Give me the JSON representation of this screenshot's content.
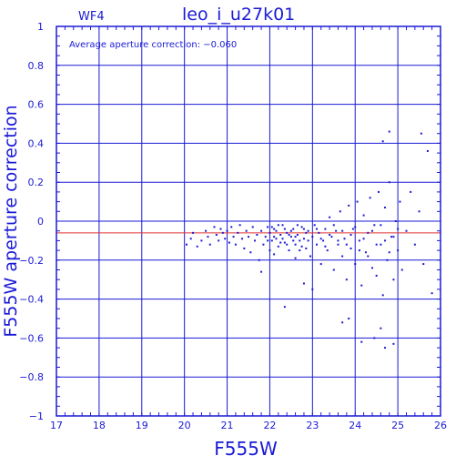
{
  "chart_data": {
    "type": "scatter",
    "panel_label": "WF4",
    "title": "leo_i_u27k01",
    "annotation": "Average aperture correction: −0.060",
    "xlabel": "F555W",
    "ylabel": "F555W aperture correction",
    "xlim": [
      17,
      26
    ],
    "ylim": [
      -1,
      1
    ],
    "x_ticks": [
      "17",
      "18",
      "19",
      "20",
      "21",
      "22",
      "23",
      "24",
      "25",
      "26"
    ],
    "y_ticks": [
      "1",
      "0.8",
      "0.6",
      "0.4",
      "0.2",
      "0",
      "−0.2",
      "−0.4",
      "−0.6",
      "−0.8",
      "−1"
    ],
    "grid": true,
    "zero_line": 0,
    "mean_line": -0.06,
    "colors": {
      "axes": "#1a1ad6",
      "points": "#1a1ad6",
      "mean_line": "#e03030"
    },
    "series": [
      {
        "values": [
          [
            20.05,
            -0.12
          ],
          [
            20.15,
            -0.09
          ],
          [
            20.2,
            -0.06
          ],
          [
            20.3,
            -0.13
          ],
          [
            20.4,
            -0.1
          ],
          [
            20.5,
            -0.05
          ],
          [
            20.55,
            -0.08
          ],
          [
            20.6,
            -0.12
          ],
          [
            20.7,
            -0.03
          ],
          [
            20.75,
            -0.07
          ],
          [
            20.8,
            -0.1
          ],
          [
            20.85,
            -0.04
          ],
          [
            20.9,
            -0.06
          ],
          [
            20.95,
            -0.09
          ],
          [
            21.0,
            -0.05
          ],
          [
            21.05,
            -0.11
          ],
          [
            21.1,
            -0.03
          ],
          [
            21.15,
            -0.08
          ],
          [
            21.2,
            -0.12
          ],
          [
            21.25,
            -0.06
          ],
          [
            21.3,
            -0.02
          ],
          [
            21.35,
            -0.09
          ],
          [
            21.4,
            -0.14
          ],
          [
            21.45,
            -0.05
          ],
          [
            21.5,
            -0.08
          ],
          [
            21.55,
            -0.16
          ],
          [
            21.6,
            -0.03
          ],
          [
            21.65,
            -0.1
          ],
          [
            21.7,
            -0.07
          ],
          [
            21.75,
            -0.2
          ],
          [
            21.8,
            -0.05
          ],
          [
            21.85,
            -0.12
          ],
          [
            21.9,
            -0.08
          ],
          [
            21.95,
            -0.03
          ],
          [
            22.0,
            -0.06
          ],
          [
            22.05,
            -0.1
          ],
          [
            22.1,
            -0.04
          ],
          [
            22.15,
            -0.09
          ],
          [
            22.2,
            -0.13
          ],
          [
            22.25,
            -0.07
          ],
          [
            22.3,
            -0.02
          ],
          [
            22.35,
            -0.11
          ],
          [
            22.4,
            -0.06
          ],
          [
            22.45,
            -0.15
          ],
          [
            22.5,
            -0.08
          ],
          [
            22.55,
            -0.04
          ],
          [
            22.6,
            -0.12
          ],
          [
            22.65,
            -0.07
          ],
          [
            22.7,
            -0.1
          ],
          [
            22.75,
            -0.03
          ],
          [
            22.8,
            -0.09
          ],
          [
            22.85,
            -0.14
          ],
          [
            22.9,
            -0.05
          ],
          [
            22.95,
            -0.18
          ],
          [
            23.0,
            -0.08
          ],
          [
            23.05,
            -0.02
          ],
          [
            23.1,
            -0.12
          ],
          [
            23.15,
            -0.06
          ],
          [
            23.2,
            -0.22
          ],
          [
            23.25,
            -0.1
          ],
          [
            23.3,
            -0.04
          ],
          [
            23.35,
            -0.15
          ],
          [
            23.4,
            0.02
          ],
          [
            23.45,
            -0.08
          ],
          [
            23.5,
            -0.25
          ],
          [
            23.55,
            -0.05
          ],
          [
            23.6,
            -0.12
          ],
          [
            23.65,
            0.05
          ],
          [
            23.7,
            -0.18
          ],
          [
            23.75,
            -0.09
          ],
          [
            23.8,
            -0.3
          ],
          [
            23.85,
            0.08
          ],
          [
            23.9,
            -0.14
          ],
          [
            23.95,
            -0.04
          ],
          [
            24.0,
            -0.22
          ],
          [
            24.05,
            0.1
          ],
          [
            24.1,
            -0.1
          ],
          [
            24.15,
            -0.33
          ],
          [
            24.2,
            0.03
          ],
          [
            24.25,
            -0.16
          ],
          [
            24.3,
            -0.06
          ],
          [
            24.35,
            0.12
          ],
          [
            24.4,
            -0.24
          ],
          [
            24.45,
            -0.02
          ],
          [
            24.5,
            -0.28
          ],
          [
            24.55,
            0.15
          ],
          [
            24.6,
            -0.12
          ],
          [
            24.65,
            -0.38
          ],
          [
            24.7,
            0.07
          ],
          [
            24.75,
            -0.2
          ],
          [
            24.8,
            0.2
          ],
          [
            24.85,
            -0.08
          ],
          [
            24.9,
            -0.3
          ],
          [
            24.95,
            0.0
          ],
          [
            25.0,
            -0.15
          ],
          [
            25.05,
            0.1
          ],
          [
            25.1,
            -0.25
          ],
          [
            25.2,
            -0.05
          ],
          [
            25.3,
            0.15
          ],
          [
            25.4,
            -0.12
          ],
          [
            25.5,
            0.05
          ],
          [
            25.6,
            -0.22
          ],
          [
            25.7,
            0.36
          ],
          [
            25.8,
            -0.37
          ],
          [
            25.55,
            0.45
          ],
          [
            24.8,
            0.46
          ],
          [
            24.65,
            0.41
          ],
          [
            24.15,
            -0.62
          ],
          [
            24.45,
            -0.6
          ],
          [
            24.6,
            -0.55
          ],
          [
            23.7,
            -0.52
          ],
          [
            23.85,
            -0.5
          ],
          [
            24.9,
            -0.63
          ],
          [
            24.7,
            -0.65
          ],
          [
            22.35,
            -0.44
          ],
          [
            23.0,
            -0.35
          ],
          [
            22.8,
            -0.32
          ],
          [
            21.8,
            -0.26
          ],
          [
            22.1,
            -0.17
          ],
          [
            22.6,
            -0.19
          ],
          [
            21.95,
            -0.1
          ],
          [
            22.05,
            -0.03
          ],
          [
            22.15,
            -0.05
          ],
          [
            22.25,
            -0.11
          ],
          [
            22.35,
            -0.04
          ],
          [
            22.45,
            -0.07
          ],
          [
            22.55,
            -0.1
          ],
          [
            22.65,
            -0.02
          ],
          [
            22.75,
            -0.13
          ],
          [
            22.85,
            -0.06
          ],
          [
            22.0,
            -0.15
          ],
          [
            22.1,
            -0.08
          ],
          [
            22.2,
            -0.02
          ],
          [
            22.3,
            -0.09
          ],
          [
            22.4,
            -0.12
          ],
          [
            22.5,
            -0.05
          ],
          [
            22.6,
            -0.08
          ],
          [
            22.7,
            -0.15
          ],
          [
            22.8,
            -0.04
          ],
          [
            22.9,
            -0.1
          ],
          [
            23.1,
            -0.04
          ],
          [
            23.2,
            -0.09
          ],
          [
            23.3,
            -0.13
          ],
          [
            23.4,
            -0.07
          ],
          [
            23.5,
            -0.02
          ],
          [
            23.6,
            -0.1
          ],
          [
            23.7,
            -0.05
          ],
          [
            23.8,
            -0.12
          ],
          [
            23.9,
            -0.07
          ],
          [
            24.0,
            -0.03
          ],
          [
            24.1,
            -0.15
          ],
          [
            24.2,
            -0.09
          ],
          [
            24.3,
            -0.18
          ],
          [
            24.4,
            -0.05
          ],
          [
            24.5,
            -0.12
          ],
          [
            24.6,
            -0.02
          ],
          [
            24.7,
            -0.1
          ],
          [
            24.8,
            -0.16
          ],
          [
            24.9,
            -0.08
          ],
          [
            25.0,
            -0.04
          ]
        ]
      }
    ]
  }
}
